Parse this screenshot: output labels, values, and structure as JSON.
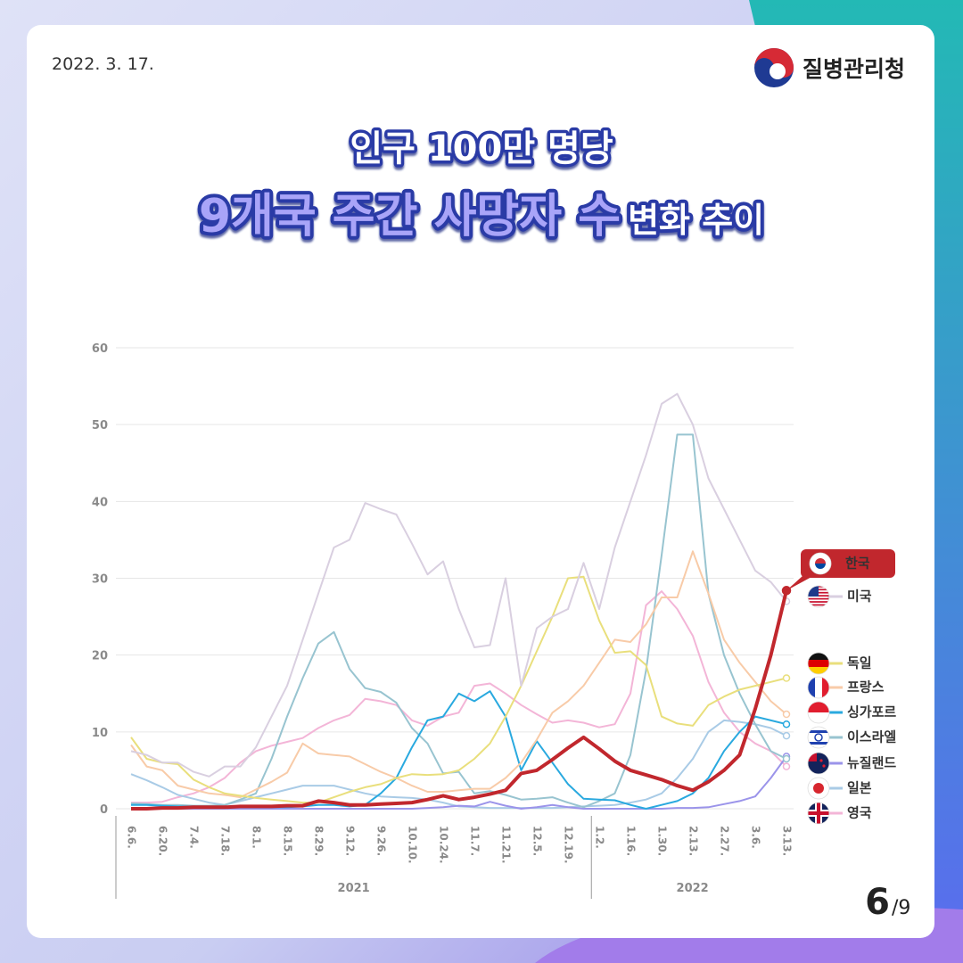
{
  "date": "2022. 3. 17.",
  "agency": "질병관리청",
  "title": {
    "line1": "인구 100만 명당",
    "line2_main": "9개국 주간 사망자 수",
    "line2_tail": "변화 추이"
  },
  "page": {
    "current": "6",
    "total": "/9"
  },
  "chart_data": {
    "type": "line",
    "categories": [
      "6.6.",
      null,
      "6.20.",
      null,
      "7.4.",
      null,
      "7.18.",
      null,
      "8.1.",
      null,
      "8.15.",
      null,
      "8.29.",
      null,
      "9.12.",
      null,
      "9.26.",
      null,
      "10.10.",
      null,
      "10.24.",
      null,
      "11.7.",
      null,
      "11.21.",
      null,
      "12.5.",
      null,
      "12.19.",
      null,
      "1.2.",
      null,
      "1.16.",
      null,
      "1.30.",
      null,
      "2.13.",
      null,
      "2.27.",
      null,
      "3.6.",
      null,
      "3.13."
    ],
    "x_groups": [
      "2021",
      "2022"
    ],
    "ylim": [
      0,
      60
    ],
    "yticks": [
      0,
      10,
      20,
      30,
      40,
      50,
      60
    ],
    "grid": true,
    "series": [
      {
        "name": "한국",
        "color": "#c1272d",
        "values": [
          0,
          0,
          0.1,
          0.1,
          0.2,
          0.2,
          0.2,
          0.3,
          0.3,
          0.3,
          0.4,
          0.4,
          1.0,
          0.8,
          0.5,
          0.5,
          0.6,
          0.7,
          0.8,
          1.2,
          1.7,
          1.2,
          1.5,
          1.9,
          2.4,
          4.6,
          5.0,
          6.4,
          7.9,
          9.3,
          7.8,
          6.2,
          5.0,
          4.4,
          3.8,
          3.0,
          2.4,
          3.5,
          5.0,
          7.0,
          13,
          20,
          28.4
        ]
      },
      {
        "name": "미국",
        "color": "#d9cfe0",
        "values": [
          7.5,
          7,
          6,
          6,
          4.8,
          4.2,
          5.5,
          5.5,
          8,
          12,
          16,
          22,
          28,
          34,
          35,
          39.8,
          39,
          38.3,
          34.5,
          30.5,
          32.2,
          26,
          21,
          21.3,
          30,
          16,
          23.5,
          25,
          26,
          32,
          26,
          34,
          40,
          46,
          52.7,
          54,
          50,
          43,
          39,
          35,
          31,
          29.5,
          27
        ]
      },
      {
        "name": "독일",
        "color": "#e9df7c",
        "values": [
          9.3,
          6.5,
          6,
          5.8,
          3.8,
          2.8,
          2,
          1.7,
          1.4,
          1.2,
          1,
          0.8,
          0.8,
          1.5,
          2.2,
          2.8,
          3.2,
          4,
          4.5,
          4.4,
          4.5,
          5,
          6.5,
          8.5,
          12,
          16,
          20.5,
          25,
          30,
          30.2,
          24.5,
          20.3,
          20.5,
          18.7,
          12,
          11.1,
          10.8,
          13.5,
          14.6,
          15.5,
          16,
          16.5,
          17
        ]
      },
      {
        "name": "프랑스",
        "color": "#f8cba8",
        "values": [
          8.3,
          5.5,
          5,
          3,
          2.5,
          2,
          1.8,
          1.5,
          2.5,
          3.5,
          4.7,
          8.5,
          7.2,
          7,
          6.8,
          5.8,
          4.8,
          4,
          3,
          2.2,
          2.2,
          2.4,
          2.6,
          2.6,
          4,
          6,
          9,
          12.5,
          14,
          16,
          19,
          22,
          21.7,
          24,
          27.5,
          27.5,
          33.5,
          28,
          22,
          19,
          16.5,
          14,
          12.3
        ]
      },
      {
        "name": "싱가포르",
        "color": "#29a9df",
        "values": [
          0.5,
          0.5,
          0.4,
          0.3,
          0.3,
          0.2,
          0.2,
          0.2,
          0.2,
          0.2,
          0.2,
          0.3,
          0.5,
          0.5,
          0.3,
          0.5,
          2,
          4,
          8,
          11.5,
          12,
          15,
          14,
          15.3,
          12,
          5,
          8.8,
          6,
          3.2,
          1.3,
          1.2,
          1.1,
          0.5,
          0,
          0.5,
          1,
          2,
          4,
          7.5,
          10,
          12,
          11.5,
          11
        ]
      },
      {
        "name": "이스라엘",
        "color": "#98c4d0",
        "values": [
          0.7,
          0.6,
          0.5,
          0.5,
          0.4,
          0.4,
          0.5,
          1.2,
          2,
          6.5,
          12,
          17,
          21.5,
          23,
          18.2,
          15.7,
          15.2,
          13.8,
          10.5,
          8.5,
          4.6,
          4.8,
          2,
          2.3,
          1.8,
          1.2,
          1.3,
          1.5,
          0.8,
          0.2,
          1,
          2,
          7,
          18,
          33,
          48.7,
          48.7,
          28,
          20,
          15,
          11,
          7.5,
          6.5
        ]
      },
      {
        "name": "뉴질랜드",
        "color": "#9b94ea",
        "values": [
          0,
          0,
          0,
          0,
          0,
          0,
          0,
          0,
          0,
          0,
          0,
          0,
          0,
          0,
          0,
          0,
          0,
          0,
          0,
          0.1,
          0.2,
          0.4,
          0.3,
          0.9,
          0.4,
          0,
          0.2,
          0.5,
          0.2,
          0,
          0,
          0,
          0,
          0,
          0,
          0.1,
          0.1,
          0.2,
          0.6,
          1,
          1.6,
          4,
          6.8
        ]
      },
      {
        "name": "일본",
        "color": "#a9cbe6",
        "values": [
          4.5,
          3.7,
          2.8,
          1.8,
          1.3,
          0.8,
          0.5,
          1,
          1.5,
          2,
          2.5,
          3,
          3,
          3,
          2.5,
          2,
          1.6,
          1.5,
          1.4,
          1.2,
          0.8,
          0.3,
          0.2,
          0.1,
          0.1,
          0.1,
          0.1,
          0.1,
          0.2,
          0.3,
          0.4,
          0.5,
          0.8,
          1.2,
          2,
          4,
          6.5,
          10,
          11.5,
          11.3,
          11,
          10.5,
          9.5
        ]
      },
      {
        "name": "영국",
        "color": "#f3b5d7",
        "values": [
          0.8,
          0.8,
          0.9,
          1.5,
          2,
          2.8,
          4,
          6,
          7.5,
          8.2,
          8.7,
          9.2,
          10.5,
          11.5,
          12.2,
          14.3,
          14,
          13.5,
          11.5,
          10.8,
          12,
          12.5,
          16,
          16.3,
          15,
          13.5,
          12.3,
          11.2,
          11.5,
          11.2,
          10.6,
          11,
          15,
          26.5,
          28.3,
          26,
          22.5,
          16.5,
          12.5,
          10,
          8.5,
          7.5,
          5.5
        ]
      }
    ]
  }
}
